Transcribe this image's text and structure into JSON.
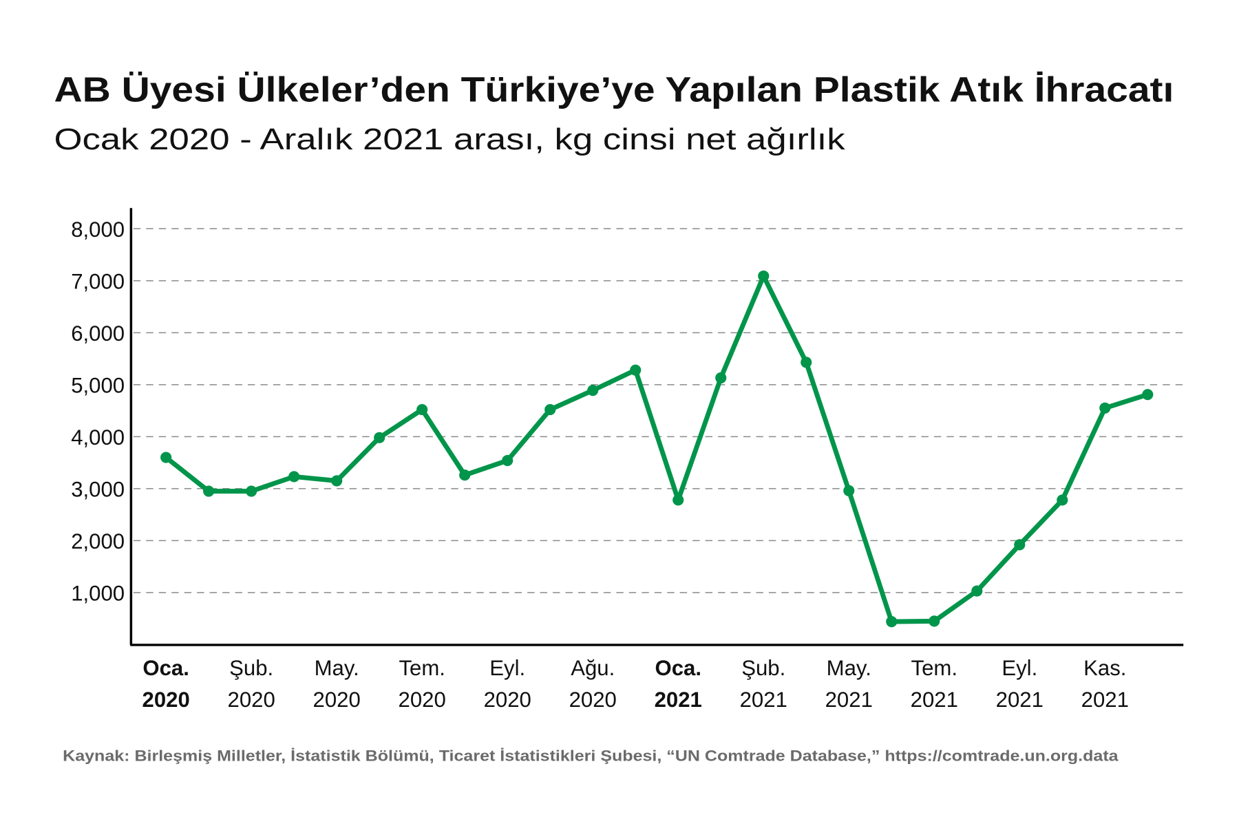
{
  "chart_data": {
    "type": "line",
    "title": "AB Üyesi Ülkeler’den Türkiye’ye Yapılan Plastik Atık İhracatı",
    "subtitle": "Ocak 2020 - Aralık 2021 arası, kg cinsi net ağırlık",
    "xlabel": "",
    "ylabel": "",
    "ylim": [
      0,
      8000
    ],
    "yticks": [
      "1,000",
      "2,000",
      "3,000",
      "4,000",
      "5,000",
      "6,000",
      "7,000",
      "8,000"
    ],
    "ytick_values": [
      1000,
      2000,
      3000,
      4000,
      5000,
      6000,
      7000,
      8000
    ],
    "grid": "horizontal dashed",
    "legend": "none",
    "color": "#00954a",
    "x_tick_labels": [
      {
        "month": "Oca.",
        "year": "2020",
        "bold": true,
        "index": 0
      },
      {
        "month": "Şub.",
        "year": "2020",
        "bold": false,
        "index": 2
      },
      {
        "month": "May.",
        "year": "2020",
        "bold": false,
        "index": 4
      },
      {
        "month": "Tem.",
        "year": "2020",
        "bold": false,
        "index": 6
      },
      {
        "month": "Eyl.",
        "year": "2020",
        "bold": false,
        "index": 8
      },
      {
        "month": "Ağu.",
        "year": "2020",
        "bold": false,
        "index": 10
      },
      {
        "month": "Oca.",
        "year": "2021",
        "bold": true,
        "index": 12
      },
      {
        "month": "Şub.",
        "year": "2021",
        "bold": false,
        "index": 14
      },
      {
        "month": "May.",
        "year": "2021",
        "bold": false,
        "index": 16
      },
      {
        "month": "Tem.",
        "year": "2021",
        "bold": false,
        "index": 18
      },
      {
        "month": "Eyl.",
        "year": "2021",
        "bold": false,
        "index": 20
      },
      {
        "month": "Kas.",
        "year": "2021",
        "bold": false,
        "index": 22
      }
    ],
    "values": [
      3600,
      2950,
      2950,
      3230,
      3150,
      3980,
      4520,
      3260,
      3540,
      4520,
      4890,
      5280,
      2780,
      5130,
      7090,
      5430,
      2960,
      440,
      450,
      1030,
      1920,
      2780,
      4550,
      4810
    ]
  },
  "source": "Kaynak: Birleşmiş Milletler, İstatistik Bölümü, Ticaret İstatistikleri Şubesi, “UN Comtrade Database,” https://comtrade.un.org.data"
}
